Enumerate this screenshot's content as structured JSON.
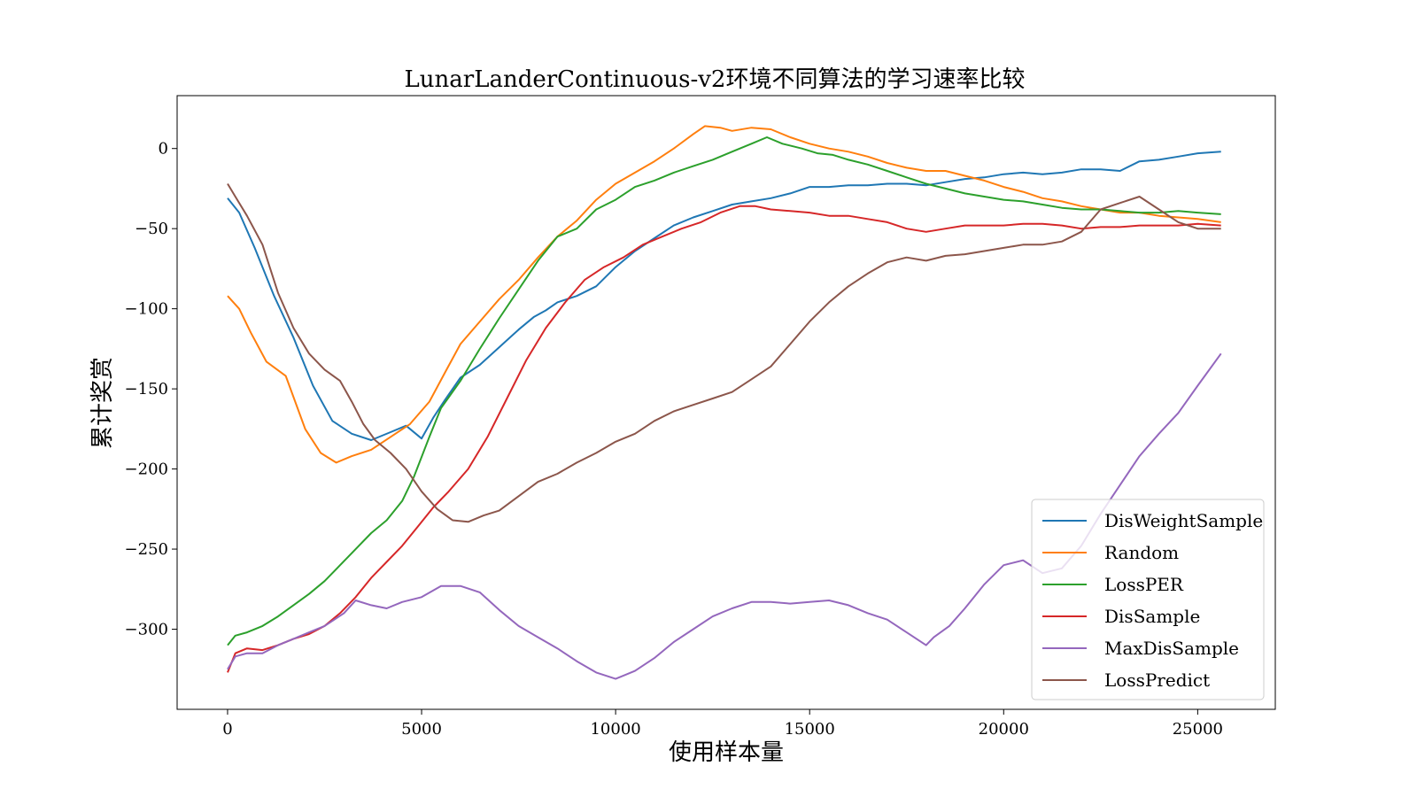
{
  "chart_data": {
    "type": "line",
    "title": "LunarLanderContinuous-v2环境不同算法的学习速率比较",
    "xlabel": "使用样本量",
    "ylabel": "累计奖赏",
    "xlim": [
      -1300,
      27000
    ],
    "ylim": [
      -350,
      33
    ],
    "xticks": [
      0,
      5000,
      10000,
      15000,
      20000,
      25000
    ],
    "yticks": [
      0,
      -50,
      -100,
      -150,
      -200,
      -250,
      -300
    ],
    "grid": false,
    "legend_position": "lower-right",
    "series": [
      {
        "name": "DisWeightSample",
        "color": "#1f77b4",
        "x": [
          0,
          300,
          700,
          1200,
          1700,
          2200,
          2700,
          3200,
          3700,
          4200,
          4600,
          5000,
          5300,
          5600,
          6000,
          6500,
          7000,
          7500,
          7900,
          8200,
          8500,
          9000,
          9500,
          10000,
          10500,
          11000,
          11500,
          12000,
          12500,
          13000,
          13500,
          14000,
          14500,
          15000,
          15500,
          16000,
          16500,
          17000,
          17500,
          18000,
          18500,
          19000,
          19500,
          20000,
          20500,
          21000,
          21500,
          22000,
          22500,
          23000,
          23500,
          24000,
          24500,
          25000,
          25600
        ],
        "y": [
          -31,
          -40,
          -62,
          -92,
          -118,
          -148,
          -170,
          -178,
          -182,
          -177,
          -173,
          -181,
          -168,
          -157,
          -143,
          -135,
          -124,
          -113,
          -105,
          -101,
          -96,
          -92,
          -86,
          -74,
          -64,
          -56,
          -48,
          -43,
          -39,
          -35,
          -33,
          -31,
          -28,
          -24,
          -24,
          -23,
          -23,
          -22,
          -22,
          -23,
          -21,
          -19,
          -18,
          -16,
          -15,
          -16,
          -15,
          -13,
          -13,
          -14,
          -8,
          -7,
          -5,
          -3,
          -2
        ]
      },
      {
        "name": "Random",
        "color": "#ff7f0e",
        "x": [
          0,
          300,
          600,
          1000,
          1500,
          2000,
          2400,
          2800,
          3200,
          3700,
          4200,
          4700,
          5200,
          5600,
          6000,
          6500,
          7000,
          7500,
          8000,
          8500,
          9000,
          9500,
          10000,
          10500,
          11000,
          11500,
          12000,
          12300,
          12700,
          13000,
          13500,
          14000,
          14500,
          15000,
          15500,
          16000,
          16500,
          17000,
          17500,
          18000,
          18500,
          19000,
          19500,
          20000,
          20500,
          21000,
          21500,
          22000,
          22500,
          23000,
          23500,
          24000,
          24500,
          25000,
          25600
        ],
        "y": [
          -92,
          -100,
          -115,
          -133,
          -142,
          -175,
          -190,
          -196,
          -192,
          -188,
          -180,
          -172,
          -158,
          -140,
          -122,
          -108,
          -94,
          -82,
          -68,
          -55,
          -45,
          -32,
          -22,
          -15,
          -8,
          0,
          9,
          14,
          13,
          11,
          13,
          12,
          7,
          3,
          0,
          -2,
          -5,
          -9,
          -12,
          -14,
          -14,
          -17,
          -20,
          -24,
          -27,
          -31,
          -33,
          -36,
          -38,
          -40,
          -40,
          -42,
          -43,
          -44,
          -46
        ]
      },
      {
        "name": "LossPER",
        "color": "#2ca02c",
        "x": [
          0,
          200,
          500,
          900,
          1300,
          1700,
          2100,
          2500,
          2900,
          3300,
          3700,
          4100,
          4500,
          4800,
          5200,
          5500,
          6000,
          6500,
          7000,
          7500,
          8000,
          8500,
          9000,
          9500,
          10000,
          10500,
          11000,
          11500,
          12000,
          12500,
          13000,
          13500,
          13900,
          14300,
          14800,
          15200,
          15600,
          16000,
          16500,
          17000,
          17500,
          18000,
          18500,
          19000,
          19500,
          20000,
          20500,
          21000,
          21500,
          22000,
          22500,
          23000,
          23500,
          24000,
          24500,
          25000,
          25600
        ],
        "y": [
          -310,
          -304,
          -302,
          -298,
          -292,
          -285,
          -278,
          -270,
          -260,
          -250,
          -240,
          -232,
          -220,
          -205,
          -180,
          -162,
          -145,
          -125,
          -106,
          -88,
          -70,
          -55,
          -50,
          -38,
          -32,
          -24,
          -20,
          -15,
          -11,
          -7,
          -2,
          3,
          7,
          3,
          0,
          -3,
          -4,
          -7,
          -10,
          -14,
          -18,
          -22,
          -25,
          -28,
          -30,
          -32,
          -33,
          -35,
          -37,
          -38,
          -38,
          -39,
          -40,
          -40,
          -39,
          -40,
          -41
        ]
      },
      {
        "name": "DisSample",
        "color": "#d62728",
        "x": [
          0,
          200,
          500,
          900,
          1300,
          1700,
          2100,
          2500,
          2900,
          3300,
          3700,
          4100,
          4500,
          4900,
          5300,
          5700,
          6200,
          6700,
          7200,
          7700,
          8200,
          8700,
          9200,
          9700,
          10200,
          10700,
          11200,
          11700,
          12200,
          12700,
          13200,
          13600,
          14000,
          14500,
          15000,
          15500,
          16000,
          16500,
          17000,
          17500,
          18000,
          18500,
          19000,
          19500,
          20000,
          20500,
          21000,
          21500,
          22000,
          22500,
          23000,
          23500,
          24000,
          24500,
          25000,
          25600
        ],
        "y": [
          -327,
          -315,
          -312,
          -313,
          -310,
          -306,
          -303,
          -298,
          -290,
          -280,
          -268,
          -258,
          -248,
          -236,
          -224,
          -214,
          -200,
          -180,
          -156,
          -132,
          -112,
          -96,
          -82,
          -74,
          -68,
          -60,
          -55,
          -50,
          -46,
          -40,
          -36,
          -36,
          -38,
          -39,
          -40,
          -42,
          -42,
          -44,
          -46,
          -50,
          -52,
          -50,
          -48,
          -48,
          -48,
          -47,
          -47,
          -48,
          -50,
          -49,
          -49,
          -48,
          -48,
          -48,
          -47,
          -48
        ]
      },
      {
        "name": "MaxDisSample",
        "color": "#9467bd",
        "x": [
          0,
          200,
          500,
          900,
          1300,
          1700,
          2100,
          2500,
          3000,
          3300,
          3700,
          4100,
          4500,
          5000,
          5500,
          6000,
          6500,
          7000,
          7500,
          8000,
          8500,
          9000,
          9500,
          10000,
          10500,
          11000,
          11500,
          12000,
          12500,
          13000,
          13500,
          14000,
          14500,
          15000,
          15500,
          16000,
          16500,
          17000,
          17500,
          18000,
          18200,
          18600,
          19000,
          19500,
          20000,
          20500,
          21000,
          21500,
          22000,
          22500,
          23000,
          23500,
          24000,
          24500,
          25000,
          25600
        ],
        "y": [
          -325,
          -317,
          -315,
          -315,
          -310,
          -306,
          -302,
          -298,
          -290,
          -282,
          -285,
          -287,
          -283,
          -280,
          -273,
          -273,
          -277,
          -288,
          -298,
          -305,
          -312,
          -320,
          -327,
          -331,
          -326,
          -318,
          -308,
          -300,
          -292,
          -287,
          -283,
          -283,
          -284,
          -283,
          -282,
          -285,
          -290,
          -294,
          -302,
          -310,
          -305,
          -298,
          -287,
          -272,
          -260,
          -257,
          -265,
          -262,
          -248,
          -228,
          -210,
          -192,
          -178,
          -165,
          -148,
          -128
        ]
      },
      {
        "name": "LossPredict",
        "color": "#8c564b",
        "x": [
          0,
          200,
          500,
          900,
          1300,
          1700,
          2100,
          2500,
          2900,
          3200,
          3500,
          3800,
          4200,
          4600,
          5000,
          5400,
          5800,
          6200,
          6600,
          7000,
          7500,
          8000,
          8500,
          9000,
          9500,
          10000,
          10500,
          11000,
          11500,
          12000,
          12500,
          13000,
          13500,
          14000,
          14500,
          15000,
          15500,
          16000,
          16500,
          17000,
          17500,
          18000,
          18500,
          19000,
          19500,
          20000,
          20500,
          21000,
          21500,
          22000,
          22500,
          23000,
          23500,
          24000,
          24500,
          25000,
          25600
        ],
        "y": [
          -22,
          -30,
          -42,
          -60,
          -90,
          -112,
          -128,
          -138,
          -145,
          -158,
          -172,
          -182,
          -190,
          -200,
          -214,
          -225,
          -232,
          -233,
          -229,
          -226,
          -217,
          -208,
          -203,
          -196,
          -190,
          -183,
          -178,
          -170,
          -164,
          -160,
          -156,
          -152,
          -144,
          -136,
          -122,
          -108,
          -96,
          -86,
          -78,
          -71,
          -68,
          -70,
          -67,
          -66,
          -64,
          -62,
          -60,
          -60,
          -58,
          -52,
          -38,
          -34,
          -30,
          -38,
          -46,
          -50,
          -50
        ]
      }
    ]
  }
}
